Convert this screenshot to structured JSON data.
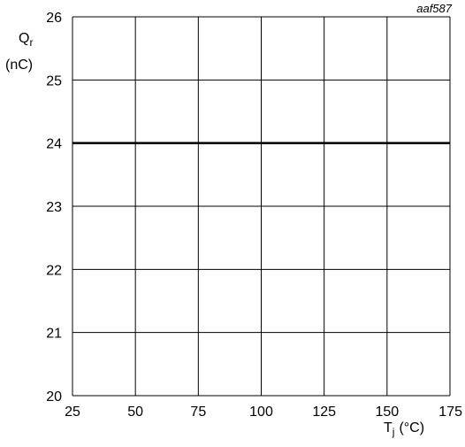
{
  "chart_data": {
    "type": "line",
    "corner_label": "aaf587",
    "ylabel": {
      "main": "Q",
      "sub": "r",
      "unit": "(nC)"
    },
    "xlabel": {
      "main": "T",
      "sub": "j",
      "unit": "(°C)"
    },
    "xlim": [
      25,
      175
    ],
    "ylim": [
      20,
      26
    ],
    "x_ticks": [
      25,
      50,
      75,
      100,
      125,
      150,
      175
    ],
    "y_ticks": [
      20,
      21,
      22,
      23,
      24,
      25,
      26
    ],
    "grid": true,
    "series": [
      {
        "x": [
          25,
          175
        ],
        "y": [
          24,
          24
        ]
      }
    ],
    "colors": {
      "line": "#000000",
      "grid": "#000000"
    }
  }
}
